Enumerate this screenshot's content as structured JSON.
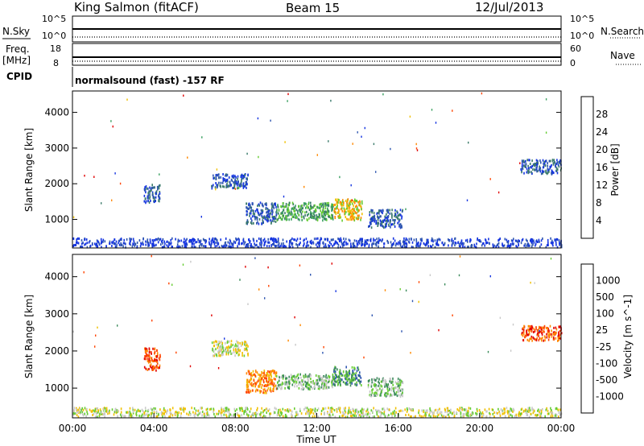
{
  "header": {
    "station": "King Salmon (fitACF)",
    "beam": "Beam 15",
    "date": "12/Jul/2013"
  },
  "status_panels": {
    "nsky_label": "N.Sky",
    "nsky_ticks": [
      "10^5",
      "10^0"
    ],
    "nsearch_label": "N.Search",
    "nsearch_ticks": [
      "10^5",
      "10^0"
    ],
    "freq_label": "Freq.",
    "freq_unit": "[MHz]",
    "freq_ticks": [
      "18",
      "8"
    ],
    "nave_label": "Nave",
    "nave_ticks": [
      "60",
      "0"
    ],
    "cpid_label": "CPID",
    "cpid_text": "normalsound (fast) -157 RF"
  },
  "colors": {
    "power": [
      "#1434e0",
      "#2f56b0",
      "#3a7a6a",
      "#3aa060",
      "#66cc33",
      "#f0c000",
      "#ff8800",
      "#ff4400",
      "#e00000"
    ],
    "velocity": [
      "#e00000",
      "#ff4400",
      "#ff8800",
      "#f0c000",
      "#c8c8c8",
      "#66cc33",
      "#3a8a5a",
      "#2f56b0",
      "#1434e0"
    ]
  },
  "chart_data": [
    {
      "type": "heatmap",
      "name": "power",
      "xlabel": "",
      "ylabel": "Slant Range [km]",
      "xlim": [
        0,
        24
      ],
      "ylim": [
        200,
        4600
      ],
      "yticks": [
        1000,
        2000,
        3000,
        4000
      ],
      "colorbar_label": "Power [dB]",
      "colorbar_ticks": [
        "4",
        "8",
        "12",
        "16",
        "20",
        "24",
        "28"
      ],
      "clusters": [
        {
          "t_start": 3.5,
          "t_end": 4.3,
          "r_start": 1500,
          "r_end": 2000,
          "level": 1
        },
        {
          "t_start": 6.8,
          "t_end": 8.6,
          "r_start": 1900,
          "r_end": 2300,
          "level": 1
        },
        {
          "t_start": 8.5,
          "t_end": 10.0,
          "r_start": 900,
          "r_end": 1500,
          "level": 1
        },
        {
          "t_start": 10.0,
          "t_end": 12.8,
          "r_start": 1000,
          "r_end": 1500,
          "level": 3
        },
        {
          "t_start": 12.8,
          "t_end": 14.2,
          "r_start": 1000,
          "r_end": 1600,
          "level": 5
        },
        {
          "t_start": 14.5,
          "t_end": 16.2,
          "r_start": 800,
          "r_end": 1300,
          "level": 1
        },
        {
          "t_start": 22.0,
          "t_end": 24.0,
          "r_start": 2300,
          "r_end": 2700,
          "level": 1
        },
        {
          "t_start": 0.0,
          "t_end": 24.0,
          "r_start": 250,
          "r_end": 500,
          "level": 0
        }
      ]
    },
    {
      "type": "heatmap",
      "name": "velocity",
      "xlabel": "Time UT",
      "ylabel": "Slant Range [km]",
      "xlim": [
        0,
        24
      ],
      "ylim": [
        200,
        4600
      ],
      "xticks": [
        "00:00",
        "04:00",
        "08:00",
        "12:00",
        "16:00",
        "20:00",
        "00:00"
      ],
      "yticks": [
        1000,
        2000,
        3000,
        4000
      ],
      "colorbar_label": "Velocity [m s^-1]",
      "colorbar_ticks": [
        "-1000",
        "-500",
        "-100",
        "-25",
        "25",
        "100",
        "500",
        "1000"
      ],
      "clusters": [
        {
          "t_start": 3.5,
          "t_end": 4.3,
          "r_start": 1500,
          "r_end": 2100,
          "level": 1
        },
        {
          "t_start": 6.8,
          "t_end": 8.6,
          "r_start": 1900,
          "r_end": 2300,
          "level": 4
        },
        {
          "t_start": 8.5,
          "t_end": 10.0,
          "r_start": 900,
          "r_end": 1500,
          "level": 2
        },
        {
          "t_start": 10.0,
          "t_end": 12.8,
          "r_start": 1000,
          "r_end": 1400,
          "level": 5
        },
        {
          "t_start": 12.8,
          "t_end": 14.2,
          "r_start": 1100,
          "r_end": 1600,
          "level": 6
        },
        {
          "t_start": 14.5,
          "t_end": 16.2,
          "r_start": 800,
          "r_end": 1300,
          "level": 5
        },
        {
          "t_start": 22.0,
          "t_end": 24.0,
          "r_start": 2300,
          "r_end": 2700,
          "level": 1
        },
        {
          "t_start": 0.0,
          "t_end": 24.0,
          "r_start": 250,
          "r_end": 500,
          "level": 4
        }
      ]
    }
  ]
}
